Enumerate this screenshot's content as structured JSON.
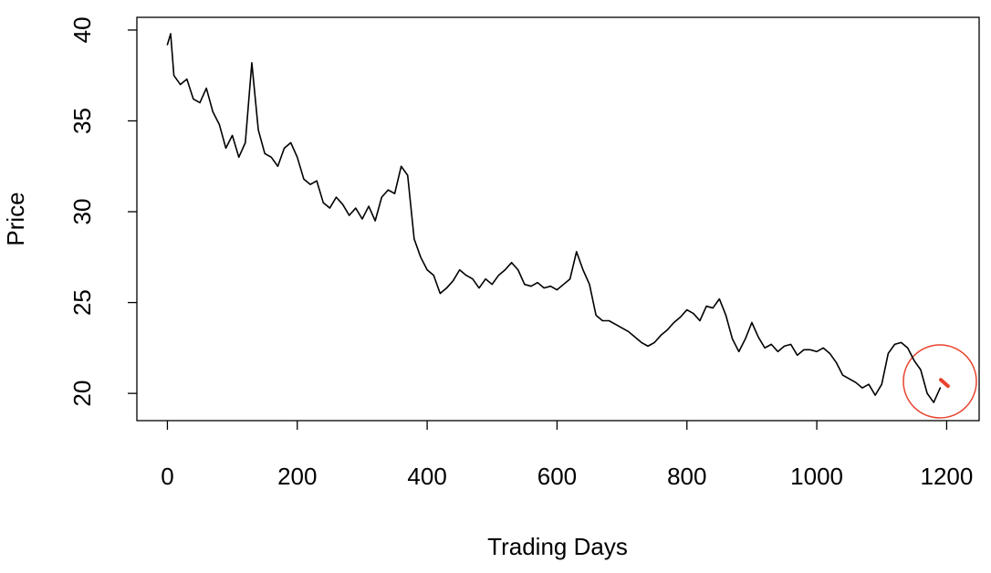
{
  "chart_data": {
    "type": "line",
    "x_label": "Trading Days",
    "y_label": "Price",
    "xlim": [
      -47,
      1250
    ],
    "ylim": [
      18.5,
      40.7
    ],
    "xticks": [
      0,
      200,
      400,
      600,
      800,
      1000,
      1200
    ],
    "yticks": [
      20,
      25,
      30,
      35,
      40
    ],
    "series": [
      {
        "color": "#000000",
        "x": [
          0,
          5,
          10,
          20,
          30,
          40,
          50,
          60,
          70,
          80,
          90,
          100,
          110,
          120,
          125,
          130,
          140,
          150,
          160,
          170,
          180,
          190,
          200,
          210,
          220,
          230,
          240,
          250,
          260,
          270,
          280,
          290,
          300,
          310,
          320,
          330,
          340,
          350,
          360,
          370,
          380,
          390,
          400,
          410,
          420,
          430,
          440,
          450,
          460,
          470,
          480,
          490,
          500,
          510,
          520,
          530,
          540,
          550,
          560,
          570,
          580,
          590,
          600,
          610,
          620,
          630,
          640,
          650,
          660,
          670,
          680,
          690,
          700,
          710,
          720,
          730,
          740,
          750,
          760,
          770,
          780,
          790,
          800,
          810,
          820,
          830,
          840,
          850,
          860,
          870,
          880,
          890,
          900,
          910,
          920,
          930,
          940,
          950,
          960,
          970,
          980,
          990,
          1000,
          1010,
          1020,
          1030,
          1040,
          1050,
          1060,
          1070,
          1080,
          1090,
          1100,
          1110,
          1120,
          1130,
          1140,
          1150,
          1160,
          1170,
          1180,
          1190
        ],
        "values": [
          39.2,
          39.8,
          37.5,
          37.0,
          37.3,
          36.2,
          36.0,
          36.8,
          35.5,
          34.8,
          33.5,
          34.2,
          33.0,
          33.8,
          36.0,
          38.2,
          34.5,
          33.2,
          33.0,
          32.5,
          33.5,
          33.8,
          33.0,
          31.8,
          31.5,
          31.7,
          30.5,
          30.2,
          30.8,
          30.4,
          29.8,
          30.2,
          29.6,
          30.3,
          29.5,
          30.8,
          31.2,
          31.0,
          32.5,
          32.0,
          28.5,
          27.5,
          26.8,
          26.5,
          25.5,
          25.8,
          26.2,
          26.8,
          26.5,
          26.3,
          25.8,
          26.3,
          26.0,
          26.5,
          26.8,
          27.2,
          26.8,
          26.0,
          25.9,
          26.1,
          25.8,
          25.9,
          25.7,
          26.0,
          26.3,
          27.8,
          26.8,
          26.0,
          24.3,
          24.0,
          24.0,
          23.8,
          23.6,
          23.4,
          23.1,
          22.8,
          22.6,
          22.8,
          23.2,
          23.5,
          23.9,
          24.2,
          24.6,
          24.4,
          24.0,
          24.8,
          24.7,
          25.2,
          24.3,
          23.0,
          22.3,
          23.0,
          23.9,
          23.1,
          22.5,
          22.7,
          22.3,
          22.6,
          22.7,
          22.1,
          22.4,
          22.4,
          22.3,
          22.5,
          22.2,
          21.7,
          21.0,
          20.8,
          20.6,
          20.3,
          20.5,
          19.9,
          20.5,
          22.2,
          22.7,
          22.8,
          22.5,
          21.8,
          21.3,
          20.0,
          19.5,
          20.3
        ]
      },
      {
        "color": "#e8432e",
        "x": [
          1191,
          1202
        ],
        "values": [
          20.75,
          20.4
        ]
      }
    ]
  }
}
